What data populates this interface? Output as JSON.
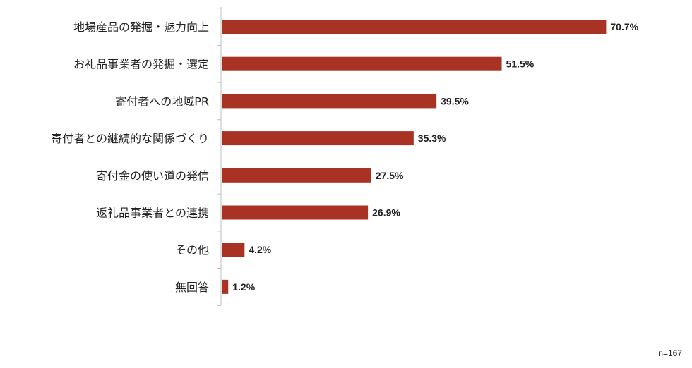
{
  "chart_data": {
    "type": "bar",
    "orientation": "horizontal",
    "categories": [
      "地場産品の発掘・魅力向上",
      "お礼品事業者の発掘・選定",
      "寄付者への地域PR",
      "寄付者との継続的な関係づくり",
      "寄付金の使い道の発信",
      "返礼品事業者との連携",
      "その他",
      "無回答"
    ],
    "values": [
      70.7,
      51.5,
      39.5,
      35.3,
      27.5,
      26.9,
      4.2,
      1.2
    ],
    "value_labels": [
      "70.7%",
      "51.5%",
      "39.5%",
      "35.3%",
      "27.5%",
      "26.9%",
      "4.2%",
      "1.2%"
    ],
    "xlim": [
      0,
      100
    ],
    "bar_color": "#A83224",
    "grid": false,
    "note": "n=167"
  }
}
